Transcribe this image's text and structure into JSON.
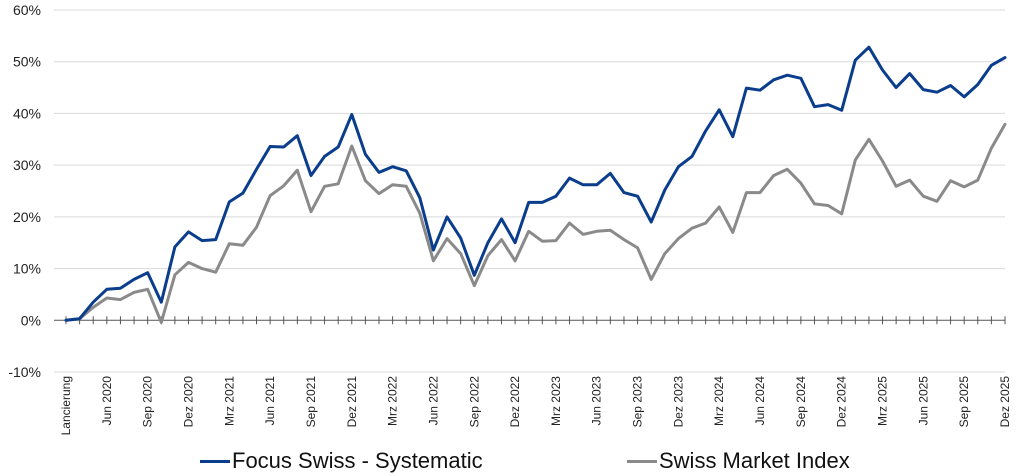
{
  "chart_data": {
    "type": "line",
    "title": "",
    "xlabel": "",
    "ylabel": "",
    "ylim": [
      -10,
      60
    ],
    "yticks": [
      {
        "value": -10,
        "label": "-10%"
      },
      {
        "value": 0,
        "label": "0%"
      },
      {
        "value": 10,
        "label": "10%"
      },
      {
        "value": 20,
        "label": "20%"
      },
      {
        "value": 30,
        "label": "30%"
      },
      {
        "value": 40,
        "label": "40%"
      },
      {
        "value": 50,
        "label": "50%"
      },
      {
        "value": 60,
        "label": "60%"
      }
    ],
    "grid": "horizontal",
    "legend_position": "bottom",
    "n_points": 70,
    "xticks": [
      {
        "index": 0,
        "label": "Lancierung"
      },
      {
        "index": 3,
        "label": "Jun 2020"
      },
      {
        "index": 6,
        "label": "Sep 2020"
      },
      {
        "index": 9,
        "label": "Dez 2020"
      },
      {
        "index": 12,
        "label": "Mrz 2021"
      },
      {
        "index": 15,
        "label": "Jun 2021"
      },
      {
        "index": 18,
        "label": "Sep 2021"
      },
      {
        "index": 21,
        "label": "Dez 2021"
      },
      {
        "index": 24,
        "label": "Mrz 2022"
      },
      {
        "index": 27,
        "label": "Jun 2022"
      },
      {
        "index": 30,
        "label": "Sep 2022"
      },
      {
        "index": 33,
        "label": "Dez 2022"
      },
      {
        "index": 36,
        "label": "Mrz 2023"
      },
      {
        "index": 39,
        "label": "Jun 2023"
      },
      {
        "index": 42,
        "label": "Sep 2023"
      },
      {
        "index": 45,
        "label": "Dez 2023"
      },
      {
        "index": 48,
        "label": "Mrz 2024"
      },
      {
        "index": 51,
        "label": "Jun 2024"
      },
      {
        "index": 54,
        "label": "Sep 2024"
      },
      {
        "index": 57,
        "label": "Dez 2024"
      },
      {
        "index": 60,
        "label": "Mrz 2025"
      },
      {
        "index": 63,
        "label": "Jun 2025"
      },
      {
        "index": 66,
        "label": "Sep 2025"
      },
      {
        "index": 69,
        "label": "Dez 2025"
      }
    ],
    "series": [
      {
        "name": "Focus Swiss - Systematic",
        "color": "#0a3d8c",
        "values": [
          0,
          0.3,
          3.5,
          6,
          6.2,
          7.9,
          9.2,
          3.5,
          14.2,
          17.1,
          15.4,
          15.6,
          22.9,
          24.6,
          29.2,
          33.6,
          33.5,
          35.7,
          28,
          31.7,
          33.5,
          39.8,
          32.1,
          28.6,
          29.7,
          28.9,
          23.7,
          13.6,
          20,
          15.9,
          8.7,
          15,
          19.6,
          15,
          22.8,
          22.8,
          24,
          27.5,
          26.2,
          26.2,
          28.4,
          24.7,
          24,
          19,
          25.2,
          29.7,
          31.7,
          36.6,
          40.7,
          35.5,
          44.9,
          44.5,
          46.5,
          47.4,
          46.8,
          41.3,
          41.7,
          40.6,
          50.3,
          52.8,
          48.4,
          45,
          47.7,
          44.6,
          44.1,
          45.4,
          43.2,
          45.6,
          49.3,
          50.8
        ]
      },
      {
        "name": "Swiss Market Index",
        "color": "#8a8a8a",
        "values": [
          0,
          0.3,
          2.5,
          4.3,
          4,
          5.4,
          6,
          -0.4,
          8.8,
          11.2,
          10,
          9.3,
          14.8,
          14.5,
          18,
          24.1,
          26,
          29,
          21,
          25.9,
          26.4,
          33.7,
          27,
          24.5,
          26.2,
          25.9,
          20.7,
          11.5,
          15.8,
          12.9,
          6.7,
          12.5,
          15.6,
          11.5,
          17.2,
          15.3,
          15.4,
          18.8,
          16.6,
          17.2,
          17.4,
          15.6,
          14,
          7.9,
          12.9,
          15.8,
          17.8,
          18.8,
          21.9,
          17,
          24.7,
          24.7,
          28,
          29.2,
          26.5,
          22.5,
          22.2,
          20.6,
          31,
          35,
          30.8,
          25.9,
          27.1,
          24,
          23,
          27,
          25.8,
          27.1,
          33.3,
          37.9
        ]
      }
    ]
  }
}
